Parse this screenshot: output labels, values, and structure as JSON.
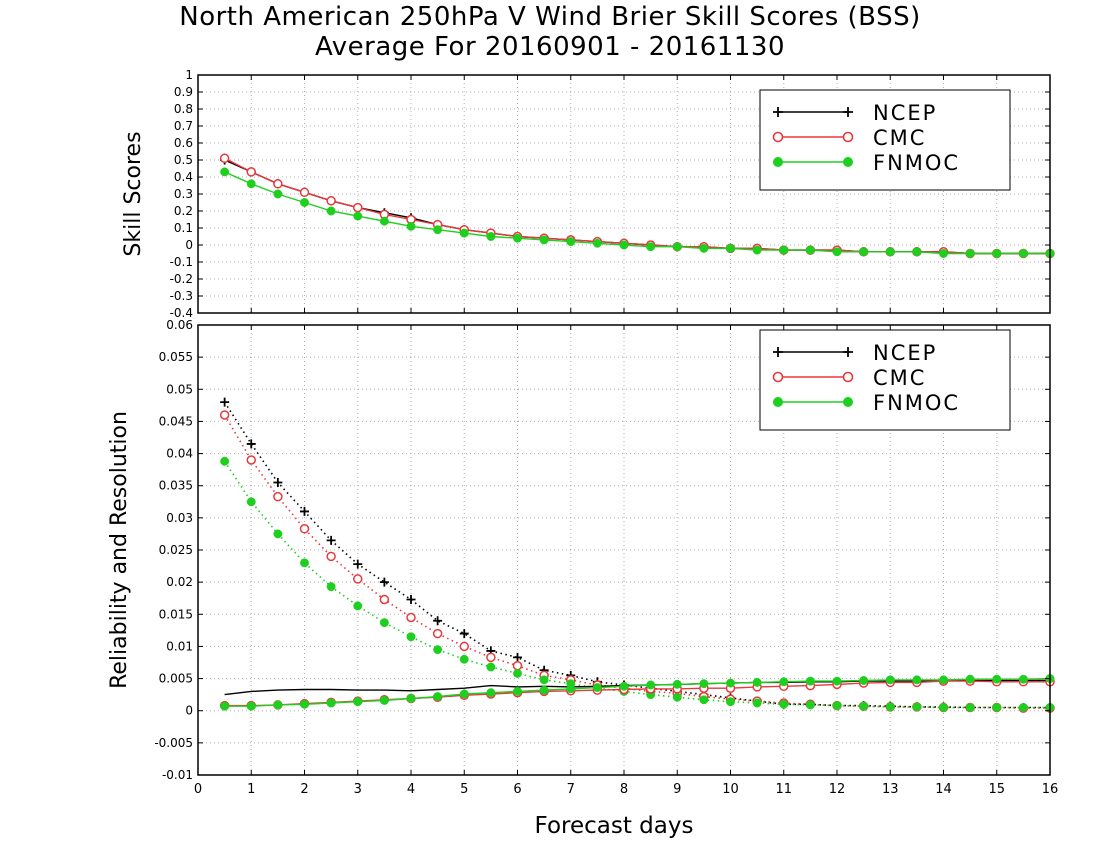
{
  "title": "North American 250hPa V Wind Brier Skill Scores (BSS)",
  "subtitle": "Average For 20160901 - 20161130",
  "colors": {
    "NCEP": "#000000",
    "CMC": "#e8383c",
    "FNMOC": "#1fcf1f"
  },
  "chart_data": [
    {
      "type": "line",
      "ylabel": "Skill Scores",
      "ylim": [
        -0.4,
        1
      ],
      "yticks": [
        "-0.4",
        "-0.3",
        "-0.2",
        "-0.1",
        "0",
        "0.1",
        "0.2",
        "0.3",
        "0.4",
        "0.5",
        "0.6",
        "0.7",
        "0.8",
        "0.9",
        "1"
      ],
      "xlim": [
        0,
        16
      ],
      "grid": true,
      "legend_position": "top-right",
      "x": [
        0.5,
        1,
        1.5,
        2,
        2.5,
        3,
        3.5,
        4,
        4.5,
        5,
        5.5,
        6,
        6.5,
        7,
        7.5,
        8,
        8.5,
        9,
        9.5,
        10,
        10.5,
        11,
        11.5,
        12,
        12.5,
        13,
        13.5,
        14,
        14.5,
        15,
        15.5,
        16
      ],
      "series": [
        {
          "name": "NCEP",
          "style": "solid",
          "marker": "plus",
          "values": [
            0.5,
            0.43,
            0.36,
            0.31,
            0.26,
            0.22,
            0.19,
            0.16,
            0.12,
            0.09,
            0.07,
            0.05,
            0.04,
            0.03,
            0.02,
            0.01,
            0.0,
            -0.01,
            -0.01,
            -0.02,
            -0.02,
            -0.03,
            -0.03,
            -0.03,
            -0.04,
            -0.04,
            -0.04,
            -0.04,
            -0.05,
            -0.05,
            -0.05,
            -0.05
          ]
        },
        {
          "name": "CMC",
          "style": "solid",
          "marker": "open-circle",
          "values": [
            0.51,
            0.43,
            0.36,
            0.31,
            0.26,
            0.22,
            0.18,
            0.15,
            0.12,
            0.09,
            0.07,
            0.05,
            0.04,
            0.03,
            0.02,
            0.01,
            0.0,
            -0.01,
            -0.01,
            -0.02,
            -0.02,
            -0.03,
            -0.03,
            -0.03,
            -0.04,
            -0.04,
            -0.04,
            -0.04,
            -0.05,
            -0.05,
            -0.05,
            -0.05
          ]
        },
        {
          "name": "FNMOC",
          "style": "solid",
          "marker": "filled-circle",
          "values": [
            0.43,
            0.36,
            0.3,
            0.25,
            0.2,
            0.17,
            0.14,
            0.11,
            0.09,
            0.07,
            0.05,
            0.04,
            0.03,
            0.02,
            0.01,
            0.0,
            -0.01,
            -0.01,
            -0.02,
            -0.02,
            -0.03,
            -0.03,
            -0.03,
            -0.04,
            -0.04,
            -0.04,
            -0.04,
            -0.05,
            -0.05,
            -0.05,
            -0.05,
            -0.05
          ]
        }
      ]
    },
    {
      "type": "line",
      "ylabel": "Reliability and Resolution",
      "xlabel": "Forecast days",
      "ylim": [
        -0.01,
        0.06
      ],
      "yticks": [
        "-0.01",
        "-0.005",
        "0",
        "0.005",
        "0.01",
        "0.015",
        "0.02",
        "0.025",
        "0.03",
        "0.035",
        "0.04",
        "0.045",
        "0.05",
        "0.055",
        "0.06"
      ],
      "xlim": [
        0,
        16
      ],
      "xticks": [
        "0",
        "1",
        "2",
        "3",
        "4",
        "5",
        "6",
        "7",
        "8",
        "9",
        "10",
        "11",
        "12",
        "13",
        "14",
        "15",
        "16"
      ],
      "grid": true,
      "legend_position": "top-right",
      "x": [
        0.5,
        1,
        1.5,
        2,
        2.5,
        3,
        3.5,
        4,
        4.5,
        5,
        5.5,
        6,
        6.5,
        7,
        7.5,
        8,
        8.5,
        9,
        9.5,
        10,
        10.5,
        11,
        11.5,
        12,
        12.5,
        13,
        13.5,
        14,
        14.5,
        15,
        15.5,
        16
      ],
      "series": [
        {
          "name": "NCEP",
          "style": "dotted",
          "marker": "plus",
          "values": [
            0.048,
            0.0415,
            0.0355,
            0.031,
            0.0265,
            0.0228,
            0.02,
            0.0173,
            0.014,
            0.012,
            0.0093,
            0.0083,
            0.0063,
            0.0055,
            0.0045,
            0.004,
            0.0035,
            0.003,
            0.0025,
            0.002,
            0.0015,
            0.001,
            0.001,
            0.0008,
            0.0008,
            0.0007,
            0.0006,
            0.0006,
            0.0005,
            0.0005,
            0.0005,
            0.0005
          ]
        },
        {
          "name": "CMC",
          "style": "dotted",
          "marker": "open-circle",
          "values": [
            0.046,
            0.039,
            0.0333,
            0.0283,
            0.024,
            0.0205,
            0.0173,
            0.0145,
            0.012,
            0.01,
            0.0083,
            0.007,
            0.0055,
            0.0048,
            0.004,
            0.0035,
            0.003,
            0.0027,
            0.0022,
            0.0018,
            0.0015,
            0.0012,
            0.001,
            0.0008,
            0.0007,
            0.0006,
            0.0006,
            0.0005,
            0.0005,
            0.0005,
            0.0004,
            0.0004
          ]
        },
        {
          "name": "FNMOC",
          "style": "dotted",
          "marker": "filled-circle",
          "values": [
            0.0388,
            0.0325,
            0.0275,
            0.023,
            0.0193,
            0.0163,
            0.0137,
            0.0115,
            0.0095,
            0.008,
            0.0068,
            0.0058,
            0.0048,
            0.0042,
            0.0035,
            0.003,
            0.0025,
            0.0021,
            0.0017,
            0.0014,
            0.0012,
            0.001,
            0.0009,
            0.0008,
            0.0007,
            0.0006,
            0.0006,
            0.0005,
            0.0005,
            0.0005,
            0.0005,
            0.0005
          ]
        },
        {
          "name": "NCEP",
          "style": "solid",
          "marker": "none",
          "values": [
            0.0025,
            0.003,
            0.0032,
            0.0033,
            0.0033,
            0.0032,
            0.0032,
            0.0031,
            0.0033,
            0.0035,
            0.0039,
            0.0037,
            0.0038,
            0.0037,
            0.0038,
            0.0039,
            0.004,
            0.0041,
            0.0042,
            0.0043,
            0.0044,
            0.0044,
            0.0045,
            0.0045,
            0.0046,
            0.0046,
            0.0046,
            0.0047,
            0.0047,
            0.0047,
            0.0047,
            0.0047
          ]
        },
        {
          "name": "CMC",
          "style": "solid",
          "marker": "open-circle",
          "values": [
            0.0008,
            0.0008,
            0.0009,
            0.0011,
            0.0013,
            0.0015,
            0.0017,
            0.0019,
            0.0021,
            0.0024,
            0.0026,
            0.0028,
            0.003,
            0.0031,
            0.0032,
            0.0033,
            0.0034,
            0.0034,
            0.0035,
            0.0035,
            0.0037,
            0.0038,
            0.0039,
            0.0041,
            0.0043,
            0.0044,
            0.0044,
            0.0046,
            0.0046,
            0.0045,
            0.0045,
            0.0045
          ]
        },
        {
          "name": "FNMOC",
          "style": "solid",
          "marker": "filled-circle",
          "values": [
            0.0007,
            0.0007,
            0.0009,
            0.001,
            0.0012,
            0.0014,
            0.0016,
            0.0019,
            0.0022,
            0.0026,
            0.0028,
            0.003,
            0.0032,
            0.0034,
            0.0036,
            0.0038,
            0.004,
            0.0041,
            0.0042,
            0.0043,
            0.0044,
            0.0045,
            0.0046,
            0.0046,
            0.0047,
            0.0048,
            0.0048,
            0.0048,
            0.0049,
            0.0049,
            0.0049,
            0.005
          ]
        }
      ]
    }
  ]
}
